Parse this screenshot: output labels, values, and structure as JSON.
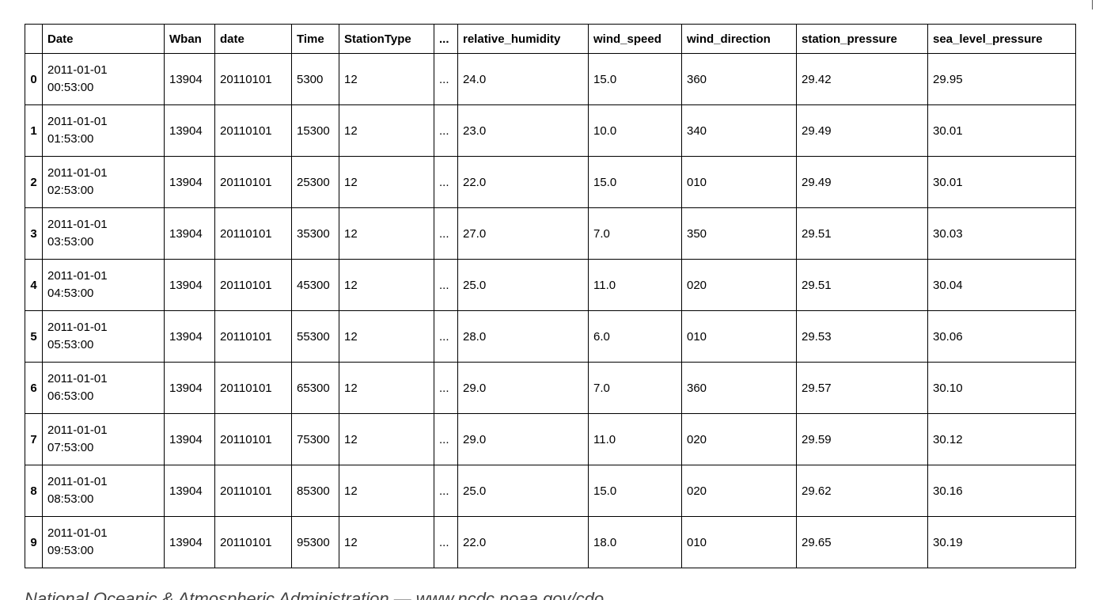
{
  "table": {
    "columns": [
      "",
      "Date",
      "Wban",
      "date",
      "Time",
      "StationType",
      "...",
      "relative_humidity",
      "wind_speed",
      "wind_direction",
      "station_pressure",
      "sea_level_pressure"
    ],
    "rows": [
      {
        "index": "0",
        "date_line1": "2011-01-01",
        "date_line2": "00:53:00",
        "wban": "13904",
        "date": "20110101",
        "time": "5300",
        "station_type": "12",
        "ellipsis": "...",
        "relative_humidity": "24.0",
        "wind_speed": "15.0",
        "wind_direction": "360",
        "station_pressure": "29.42",
        "sea_level_pressure": "29.95"
      },
      {
        "index": "1",
        "date_line1": "2011-01-01",
        "date_line2": "01:53:00",
        "wban": "13904",
        "date": "20110101",
        "time": "15300",
        "station_type": "12",
        "ellipsis": "...",
        "relative_humidity": "23.0",
        "wind_speed": "10.0",
        "wind_direction": "340",
        "station_pressure": "29.49",
        "sea_level_pressure": "30.01"
      },
      {
        "index": "2",
        "date_line1": "2011-01-01",
        "date_line2": "02:53:00",
        "wban": "13904",
        "date": "20110101",
        "time": "25300",
        "station_type": "12",
        "ellipsis": "...",
        "relative_humidity": "22.0",
        "wind_speed": "15.0",
        "wind_direction": "010",
        "station_pressure": "29.49",
        "sea_level_pressure": "30.01"
      },
      {
        "index": "3",
        "date_line1": "2011-01-01",
        "date_line2": "03:53:00",
        "wban": "13904",
        "date": "20110101",
        "time": "35300",
        "station_type": "12",
        "ellipsis": "...",
        "relative_humidity": "27.0",
        "wind_speed": "7.0",
        "wind_direction": "350",
        "station_pressure": "29.51",
        "sea_level_pressure": "30.03"
      },
      {
        "index": "4",
        "date_line1": "2011-01-01",
        "date_line2": "04:53:00",
        "wban": "13904",
        "date": "20110101",
        "time": "45300",
        "station_type": "12",
        "ellipsis": "...",
        "relative_humidity": "25.0",
        "wind_speed": "11.0",
        "wind_direction": "020",
        "station_pressure": "29.51",
        "sea_level_pressure": "30.04"
      },
      {
        "index": "5",
        "date_line1": "2011-01-01",
        "date_line2": "05:53:00",
        "wban": "13904",
        "date": "20110101",
        "time": "55300",
        "station_type": "12",
        "ellipsis": "...",
        "relative_humidity": "28.0",
        "wind_speed": "6.0",
        "wind_direction": "010",
        "station_pressure": "29.53",
        "sea_level_pressure": "30.06"
      },
      {
        "index": "6",
        "date_line1": "2011-01-01",
        "date_line2": "06:53:00",
        "wban": "13904",
        "date": "20110101",
        "time": "65300",
        "station_type": "12",
        "ellipsis": "...",
        "relative_humidity": "29.0",
        "wind_speed": "7.0",
        "wind_direction": "360",
        "station_pressure": "29.57",
        "sea_level_pressure": "30.10"
      },
      {
        "index": "7",
        "date_line1": "2011-01-01",
        "date_line2": "07:53:00",
        "wban": "13904",
        "date": "20110101",
        "time": "75300",
        "station_type": "12",
        "ellipsis": "...",
        "relative_humidity": "29.0",
        "wind_speed": "11.0",
        "wind_direction": "020",
        "station_pressure": "29.59",
        "sea_level_pressure": "30.12"
      },
      {
        "index": "8",
        "date_line1": "2011-01-01",
        "date_line2": "08:53:00",
        "wban": "13904",
        "date": "20110101",
        "time": "85300",
        "station_type": "12",
        "ellipsis": "...",
        "relative_humidity": "25.0",
        "wind_speed": "15.0",
        "wind_direction": "020",
        "station_pressure": "29.62",
        "sea_level_pressure": "30.16"
      },
      {
        "index": "9",
        "date_line1": "2011-01-01",
        "date_line2": "09:53:00",
        "wban": "13904",
        "date": "20110101",
        "time": "95300",
        "station_type": "12",
        "ellipsis": "...",
        "relative_humidity": "22.0",
        "wind_speed": "18.0",
        "wind_direction": "010",
        "station_pressure": "29.65",
        "sea_level_pressure": "30.19"
      }
    ]
  },
  "footer": {
    "text": "National Oceanic & Atmospheric Administration — www.ncdc.noaa.gov/cdo"
  }
}
